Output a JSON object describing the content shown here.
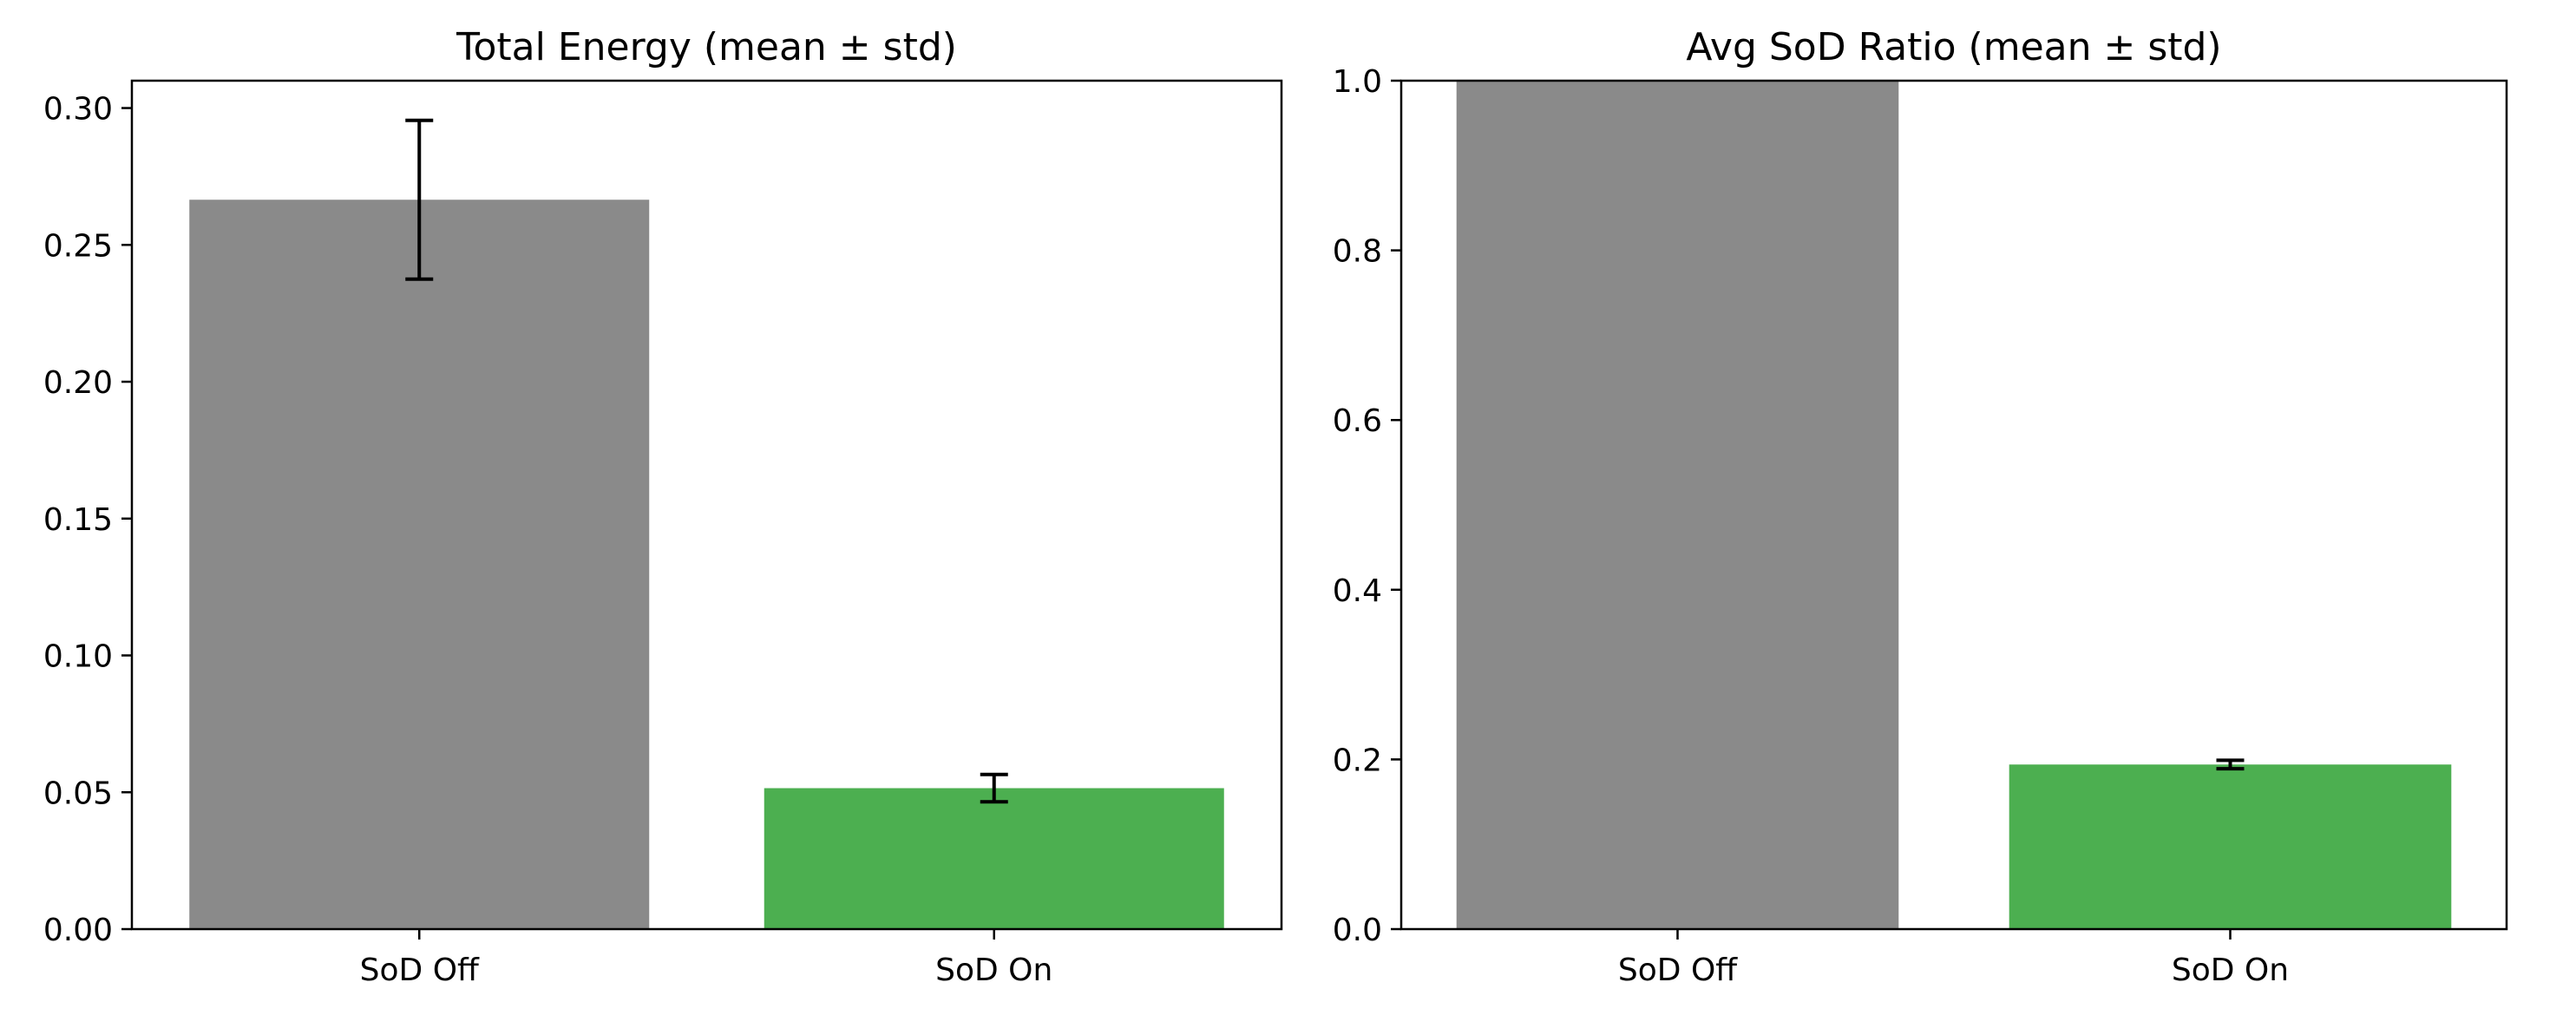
{
  "chart_data": [
    {
      "type": "bar",
      "title": "Total Energy (mean ± std)",
      "xlabel": "",
      "ylabel": "",
      "categories": [
        "SoD Off",
        "SoD On"
      ],
      "values": [
        0.2665,
        0.0515
      ],
      "errors": [
        0.029,
        0.005
      ],
      "colors": [
        "#8a8a8a",
        "#4caf50"
      ],
      "ylim": [
        0,
        0.31
      ],
      "yticks": [
        0.0,
        0.05,
        0.1,
        0.15,
        0.2,
        0.25,
        0.3
      ],
      "ytick_labels": [
        "0.00",
        "0.05",
        "0.10",
        "0.15",
        "0.20",
        "0.25",
        "0.30"
      ],
      "grid": false
    },
    {
      "type": "bar",
      "title": "Avg SoD Ratio (mean ± std)",
      "xlabel": "",
      "ylabel": "",
      "categories": [
        "SoD Off",
        "SoD On"
      ],
      "values": [
        1.0,
        0.194
      ],
      "errors": [
        0.0,
        0.005
      ],
      "colors": [
        "#8a8a8a",
        "#4caf50"
      ],
      "ylim": [
        0,
        1.0
      ],
      "yticks": [
        0.0,
        0.2,
        0.4,
        0.6,
        0.8,
        1.0
      ],
      "ytick_labels": [
        "0.0",
        "0.2",
        "0.4",
        "0.6",
        "0.8",
        "1.0"
      ],
      "grid": false
    }
  ]
}
